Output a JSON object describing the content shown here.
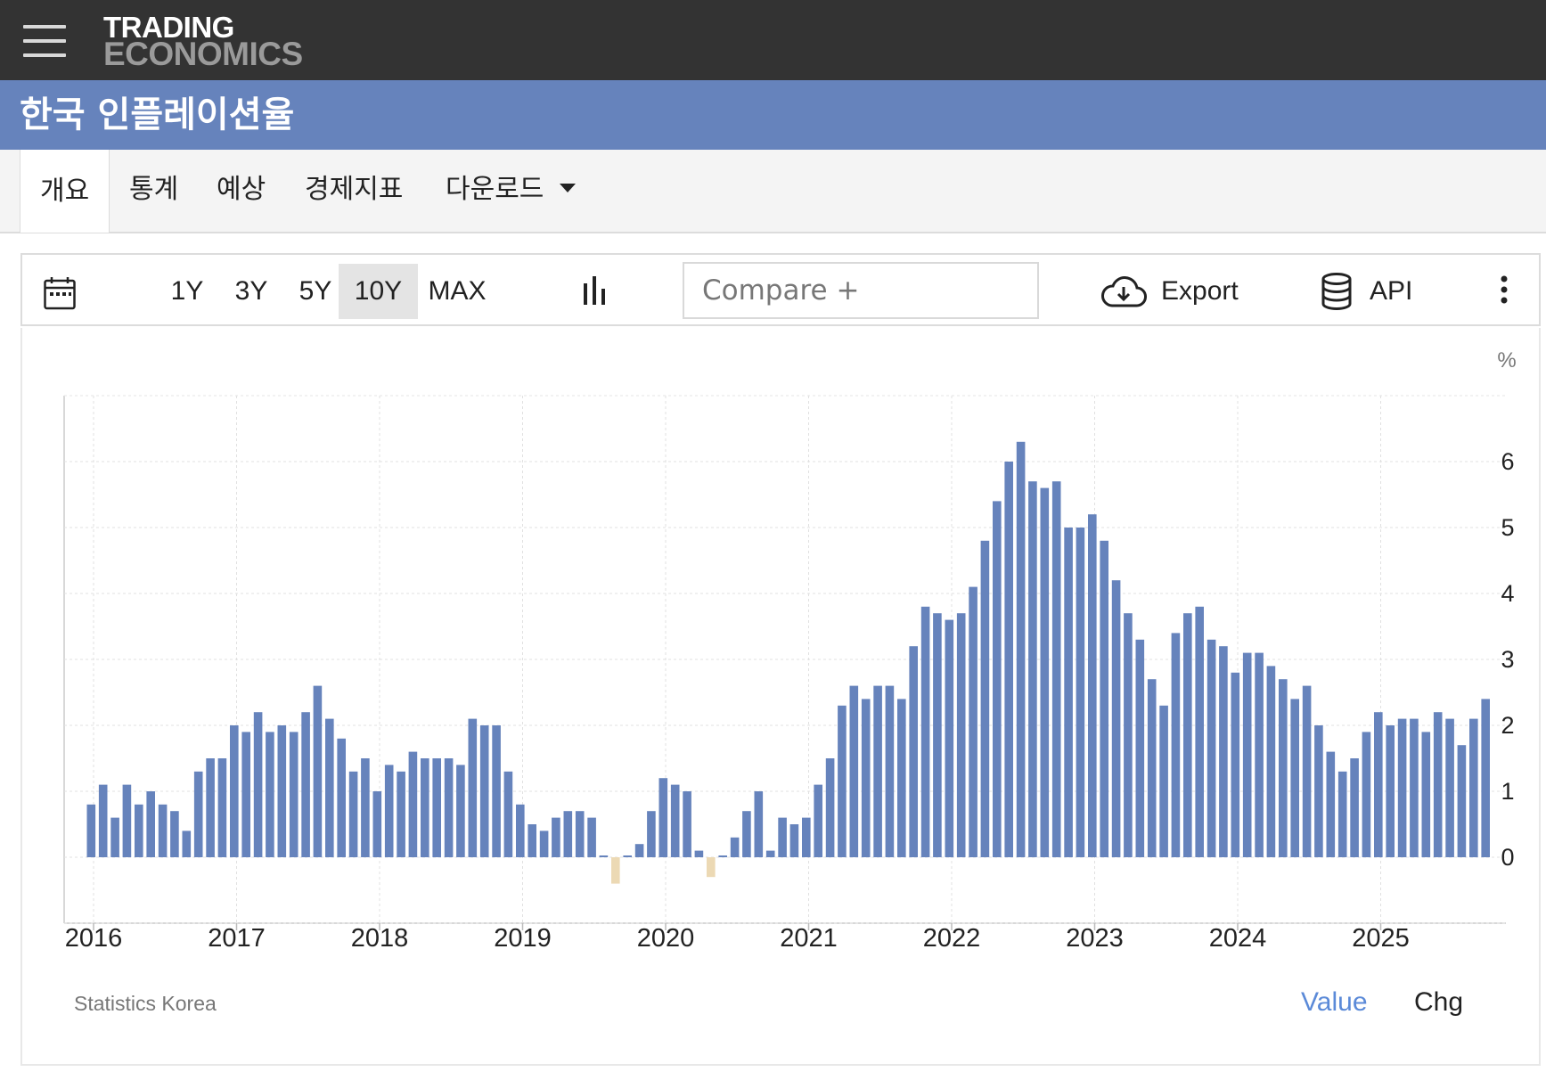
{
  "brand": {
    "line1": "TRADING",
    "line2": "ECONOMICS"
  },
  "page_title": "한국 인플레이션율",
  "tabs": [
    {
      "label": "개요",
      "active": true
    },
    {
      "label": "통계",
      "active": false
    },
    {
      "label": "예상",
      "active": false
    },
    {
      "label": "경제지표",
      "active": false
    },
    {
      "label": "다운로드",
      "active": false,
      "dropdown": true
    }
  ],
  "toolbar": {
    "ranges": [
      "1Y",
      "3Y",
      "5Y",
      "10Y",
      "MAX"
    ],
    "selected_range": "10Y",
    "compare_placeholder": "Compare +",
    "export_label": "Export",
    "api_label": "API",
    "icons": [
      "calendar-icon",
      "bar-chart-icon",
      "cloud-download-icon",
      "database-icon",
      "more-vertical-icon"
    ]
  },
  "chart_data": {
    "type": "bar",
    "unit_label": "%",
    "x_start": "2016-01",
    "frequency": "monthly",
    "x_tick_labels": [
      "2016",
      "2017",
      "2018",
      "2019",
      "2020",
      "2021",
      "2022",
      "2023",
      "2024",
      "2025"
    ],
    "y_tick_labels": [
      "0",
      "1",
      "2",
      "3",
      "4",
      "5",
      "6"
    ],
    "ylim": [
      -1,
      7
    ],
    "grid": true,
    "colors": {
      "positive": "#6683bc",
      "negative": "#ecd9b4"
    },
    "values": [
      0.8,
      1.1,
      0.6,
      1.1,
      0.8,
      1.0,
      0.8,
      0.7,
      0.4,
      1.3,
      1.5,
      1.5,
      2.0,
      1.9,
      2.2,
      1.9,
      2.0,
      1.9,
      2.2,
      2.6,
      2.1,
      1.8,
      1.3,
      1.5,
      1.0,
      1.4,
      1.3,
      1.6,
      1.5,
      1.5,
      1.5,
      1.4,
      2.1,
      2.0,
      2.0,
      1.3,
      0.8,
      0.5,
      0.4,
      0.6,
      0.7,
      0.7,
      0.6,
      0.0,
      -0.4,
      0.0,
      0.2,
      0.7,
      1.2,
      1.1,
      1.0,
      0.1,
      -0.3,
      0.0,
      0.3,
      0.7,
      1.0,
      0.1,
      0.6,
      0.5,
      0.6,
      1.1,
      1.5,
      2.3,
      2.6,
      2.4,
      2.6,
      2.6,
      2.4,
      3.2,
      3.8,
      3.7,
      3.6,
      3.7,
      4.1,
      4.8,
      5.4,
      6.0,
      6.3,
      5.7,
      5.6,
      5.7,
      5.0,
      5.0,
      5.2,
      4.8,
      4.2,
      3.7,
      3.3,
      2.7,
      2.3,
      3.4,
      3.7,
      3.8,
      3.3,
      3.2,
      2.8,
      3.1,
      3.1,
      2.9,
      2.7,
      2.4,
      2.6,
      2.0,
      1.6,
      1.3,
      1.5,
      1.9,
      2.2,
      2.0,
      2.1,
      2.1,
      1.9,
      2.2,
      2.1,
      1.7,
      2.1,
      2.4
    ]
  },
  "source": "Statistics Korea",
  "view_modes": [
    {
      "label": "Value",
      "active": true
    },
    {
      "label": "Chg",
      "active": false
    }
  ]
}
